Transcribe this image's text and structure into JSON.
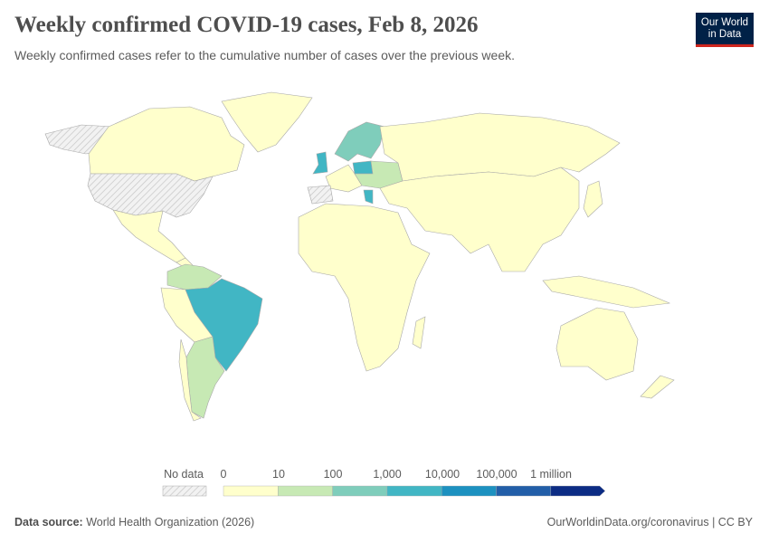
{
  "header": {
    "title": "Weekly confirmed COVID-19 cases, Feb 8, 2026",
    "subtitle": "Weekly confirmed cases refer to the cumulative number of cases over the previous week.",
    "logo": "Our World in Data"
  },
  "legend": {
    "no_data_label": "No data",
    "bins": [
      "0",
      "10",
      "100",
      "1,000",
      "10,000",
      "100,000",
      "1 million"
    ],
    "colors": [
      "#ffffcc",
      "#c7e9b4",
      "#7fcdbb",
      "#41b6c4",
      "#1d91c0",
      "#225ea8",
      "#0c2c84"
    ],
    "no_data_pattern": "hatched-grey"
  },
  "map_data": {
    "United Kingdom": "1,000–10,000",
    "Brazil": "1,000–10,000",
    "Poland": "1,000–10,000",
    "Greece": "1,000–10,000",
    "Scandinavia": "100–1,000",
    "Colombia": "10–100",
    "Argentina": "10–100",
    "Eastern Europe": "10–100",
    "United States": "No data",
    "Spain": "No data",
    "Alaska": "No data",
    "Most other countries": "0–10"
  },
  "footer": {
    "source_label": "Data source:",
    "source": "World Health Organization (2026)",
    "link": "OurWorldinData.org/coronavirus | CC BY"
  }
}
